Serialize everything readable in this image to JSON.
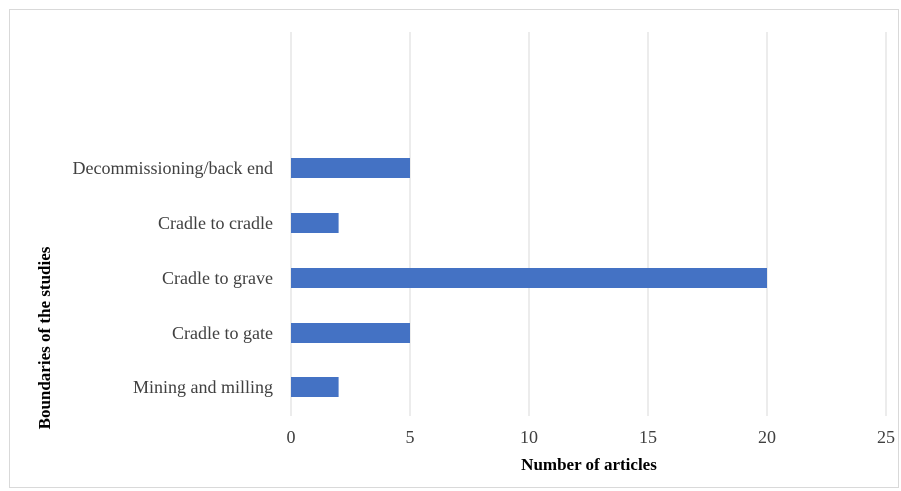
{
  "chart_data": {
    "type": "bar",
    "orientation": "horizontal",
    "categories": [
      "Mining and milling",
      "Cradle to gate",
      "Cradle to grave",
      "Cradle to cradle",
      "Decommissioning/back end"
    ],
    "values": [
      2,
      5,
      20,
      2,
      5
    ],
    "xlabel": "Number of articles",
    "ylabel": "Boundaries of the studies",
    "xlim": [
      0,
      25
    ],
    "xticks": [
      0,
      5,
      10,
      15,
      20,
      25
    ],
    "grid": "vertical",
    "legend": "none",
    "bar_color": "#4472C4",
    "grid_color": "#d9d9d9"
  }
}
